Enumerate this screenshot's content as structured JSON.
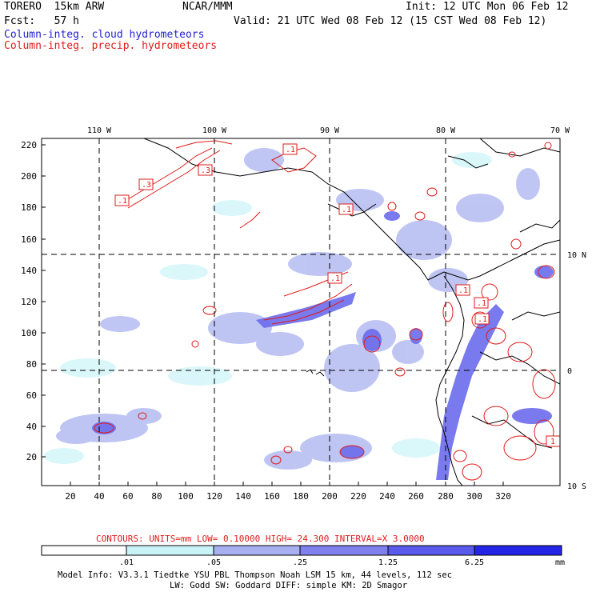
{
  "header": {
    "model_name": "TORERO  15km ARW",
    "org": "NCAR/MMM",
    "init": "Init: 12 UTC Mon 06 Feb 12",
    "fcst": "Fcst:   57 h",
    "valid": "Valid: 21 UTC Wed 08 Feb 12 (15 CST Wed 08 Feb 12)",
    "legend_cloud": "Column-integ. cloud hydrometeors",
    "legend_precip": "Column-integ. precip. hydrometeors"
  },
  "colors": {
    "cloud": "#1f1fd0",
    "precip": "#e01a1a",
    "scale": [
      "#ffffff",
      "#c8f4f8",
      "#a8b8f4",
      "#8c8cf0",
      "#6a6aee",
      "#4848ec",
      "#1d1de8"
    ]
  },
  "map": {
    "x_ticks": [
      "20",
      "40",
      "60",
      "80",
      "100",
      "120",
      "140",
      "160",
      "180",
      "200",
      "220",
      "240",
      "260",
      "280",
      "300",
      "320"
    ],
    "y_ticks": [
      "20",
      "40",
      "60",
      "80",
      "100",
      "120",
      "140",
      "160",
      "180",
      "200",
      "220"
    ],
    "lon_labels": [
      "110 W",
      "100 W",
      "90 W",
      "80 W",
      "70 W"
    ],
    "lat_labels": [
      "10 N",
      "0",
      "10 S"
    ],
    "contour_labels": [
      ".1",
      ".3",
      ".3",
      ".1",
      ".1",
      ".1",
      ".1",
      ".1",
      ".1",
      "1"
    ]
  },
  "contour_info": {
    "text": "CONTOURS:  UNITS=mm  LOW= 0.10000     HIGH=  24.300     INTERVAL=X  3.0000"
  },
  "colorbar": {
    "labels": [
      ".01",
      ".05",
      ".25",
      "1.25",
      "6.25"
    ],
    "unit": "mm"
  },
  "footer": {
    "line1": "Model Info: V3.3.1   Tiedtke YSU PBL  Thompson    Noah LSM  15 km,   44 levels,   112 sec",
    "line2": "LW: Godd SW: Goddard DIFF: simple KM: 2D Smagor"
  }
}
